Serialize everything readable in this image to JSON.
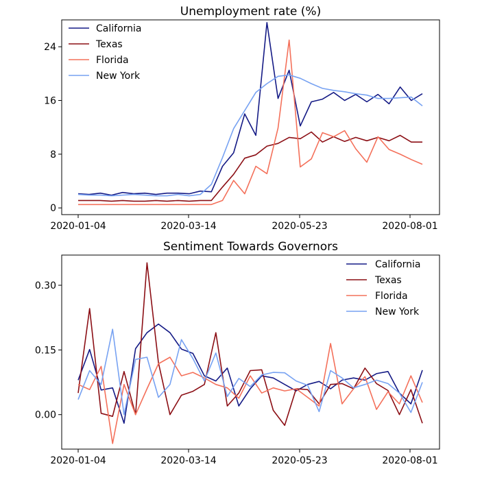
{
  "chart_data": [
    {
      "type": "line",
      "title": "Unemployment rate (%)",
      "xlabel": "",
      "ylabel": "",
      "x_ticks": [
        "2020-01-04",
        "2020-03-14",
        "2020-05-23",
        "2020-08-01"
      ],
      "y_ticks": [
        0,
        8,
        16,
        24
      ],
      "ylim": [
        -1,
        28
      ],
      "grid": false,
      "legend_position": "top-left",
      "series": [
        {
          "name": "California",
          "color": "#141a85",
          "values": [
            2.1,
            2.0,
            2.2,
            1.9,
            2.3,
            2.1,
            2.2,
            2.0,
            2.2,
            2.2,
            2.1,
            2.5,
            2.4,
            6.2,
            8.2,
            14.0,
            10.8,
            27.6,
            16.3,
            20.5,
            12.2,
            15.8,
            16.2,
            17.2,
            16.0,
            16.9,
            15.8,
            16.9,
            15.5,
            18.0,
            16.0,
            17.0
          ]
        },
        {
          "name": "Texas",
          "color": "#8b0e14",
          "values": [
            1.1,
            1.1,
            1.1,
            1.0,
            1.1,
            1.0,
            1.0,
            1.1,
            1.0,
            1.1,
            1.0,
            1.1,
            1.1,
            3.1,
            5.0,
            7.4,
            7.9,
            9.2,
            9.6,
            10.5,
            10.3,
            11.3,
            9.8,
            10.6,
            9.9,
            10.5,
            10.0,
            10.5,
            10.0,
            10.8,
            9.8,
            9.8
          ]
        },
        {
          "name": "Florida",
          "color": "#f4705a",
          "values": [
            0.5,
            0.5,
            0.5,
            0.5,
            0.5,
            0.5,
            0.5,
            0.5,
            0.5,
            0.5,
            0.5,
            0.5,
            0.5,
            1.1,
            4.1,
            2.1,
            6.2,
            5.1,
            11.9,
            25.0,
            6.1,
            7.3,
            11.2,
            10.6,
            11.5,
            8.8,
            6.8,
            10.6,
            8.7,
            8.0,
            7.2,
            6.5
          ]
        },
        {
          "name": "New York",
          "color": "#77a2f2",
          "values": [
            2.0,
            1.9,
            1.9,
            1.8,
            1.9,
            2.0,
            1.9,
            1.8,
            1.8,
            2.0,
            1.8,
            2.0,
            3.5,
            7.5,
            11.8,
            14.5,
            17.2,
            18.5,
            19.6,
            19.8,
            19.3,
            18.5,
            17.8,
            17.5,
            17.3,
            17.0,
            16.8,
            16.3,
            16.3,
            16.4,
            16.5,
            15.2
          ]
        }
      ]
    },
    {
      "type": "line",
      "title": "Sentiment Towards Governors",
      "xlabel": "",
      "ylabel": "",
      "x_ticks": [
        "2020-01-04",
        "2020-03-14",
        "2020-05-23",
        "2020-08-01"
      ],
      "y_ticks": [
        "0.00",
        "0.15",
        "0.30"
      ],
      "ylim": [
        -0.08,
        0.37
      ],
      "grid": false,
      "legend_position": "top-right",
      "series": [
        {
          "name": "California",
          "color": "#141a85",
          "values": [
            0.08,
            0.151,
            0.057,
            0.062,
            -0.02,
            0.153,
            0.19,
            0.21,
            0.19,
            0.152,
            0.142,
            0.09,
            0.078,
            0.108,
            0.02,
            0.06,
            0.09,
            0.085,
            0.07,
            0.055,
            0.07,
            0.077,
            0.06,
            0.08,
            0.085,
            0.08,
            0.095,
            0.1,
            0.05,
            0.025,
            0.103
          ]
        },
        {
          "name": "Texas",
          "color": "#8b0e14",
          "values": [
            0.05,
            0.246,
            0.003,
            -0.004,
            0.1,
            0.0,
            0.352,
            0.12,
            0.0,
            0.045,
            0.054,
            0.07,
            0.19,
            0.02,
            0.05,
            0.102,
            0.104,
            0.01,
            -0.025,
            0.06,
            0.058,
            0.025,
            0.07,
            0.072,
            0.06,
            0.108,
            0.072,
            0.056,
            0.0,
            0.058,
            -0.02
          ]
        },
        {
          "name": "Florida",
          "color": "#f4705a",
          "values": [
            0.07,
            0.058,
            0.112,
            -0.067,
            0.07,
            0.0,
            0.06,
            0.118,
            0.133,
            0.09,
            0.098,
            0.085,
            0.07,
            0.062,
            0.038,
            0.09,
            0.05,
            0.062,
            0.055,
            0.06,
            0.04,
            0.02,
            0.165,
            0.025,
            0.06,
            0.088,
            0.012,
            0.053,
            0.025,
            0.09,
            0.028
          ]
        },
        {
          "name": "New York",
          "color": "#77a2f2",
          "values": [
            0.035,
            0.102,
            0.07,
            0.198,
            0.0,
            0.128,
            0.133,
            0.04,
            0.07,
            0.174,
            0.13,
            0.078,
            0.143,
            0.042,
            0.084,
            0.065,
            0.092,
            0.098,
            0.097,
            0.078,
            0.068,
            0.007,
            0.102,
            0.085,
            0.062,
            0.07,
            0.08,
            0.072,
            0.05,
            0.005,
            0.075
          ]
        }
      ]
    }
  ]
}
